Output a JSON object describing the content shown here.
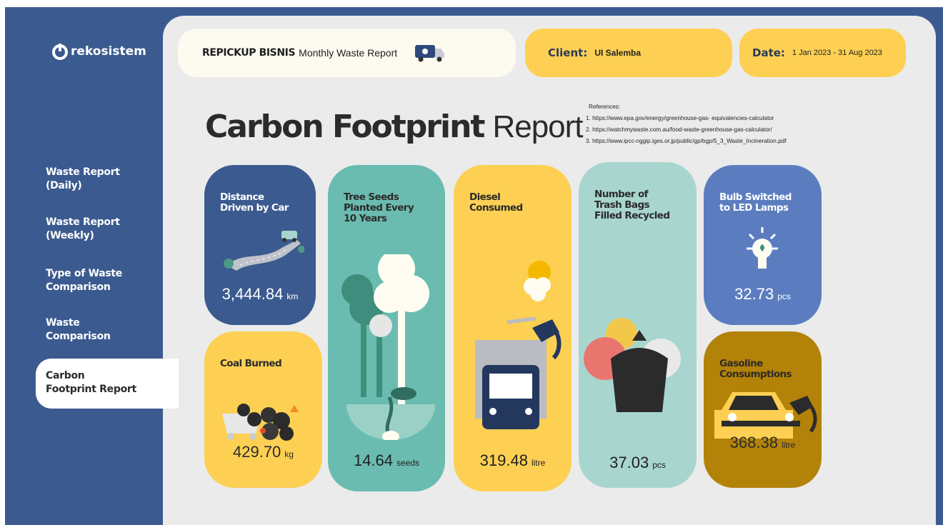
{
  "sidebar": {
    "logo": "rekosistem",
    "nav": [
      [
        "Waste Report",
        "(Daily)"
      ],
      [
        "Waste Report",
        "(Weekly)"
      ],
      [
        "Type of Waste",
        "Comparison"
      ],
      [
        "Waste",
        "Comparison"
      ],
      [
        "Carbon",
        "Footprint Report"
      ]
    ]
  },
  "header": {
    "brand": "REPICKUP BISNIS",
    "title": "Monthly Waste Report",
    "client_label": "Client:",
    "client": "UI Salemba",
    "date_label": "Date:",
    "date": "1 Jan 2023 - 31 Aug 2023"
  },
  "report": {
    "title_bold": "Carbon Footprint",
    "title_regular": "Report",
    "references_heading": "References:",
    "references": [
      "1. https://www.epa.gov/energy/greenhouse-gas- equivalencies-calculator",
      "2. https://watchmywaste.com.au/food-waste-greenhouse-gas-calculator/",
      "3. https://www.ipcc-nggip.iges.or.jp/public/gp/bgp/5_3_Waste_Incineration.pdf"
    ]
  },
  "cards": [
    {
      "title": [
        "Distance",
        "Driven by Car"
      ],
      "value": "3,444.84",
      "unit": "km"
    },
    {
      "title": [
        "Coal Burned"
      ],
      "value": "429.70",
      "unit": "kg"
    },
    {
      "title": [
        "Tree Seeds",
        "Planted Every",
        "10 Years"
      ],
      "value": "14.64",
      "unit": "seeds"
    },
    {
      "title": [
        "Diesel",
        "Consumed"
      ],
      "value": "319.48",
      "unit": "litre"
    },
    {
      "title": [
        "Number of",
        "Trash Bags",
        "Filled Recycled"
      ],
      "value": "37.03",
      "unit": "pcs"
    },
    {
      "title": [
        "Bulb Switched",
        "to LED Lamps"
      ],
      "value": "32.73",
      "unit": "pcs"
    },
    {
      "title": [
        "Gasoline",
        "Consumptions"
      ],
      "value": "368.38",
      "unit": "litre"
    }
  ]
}
